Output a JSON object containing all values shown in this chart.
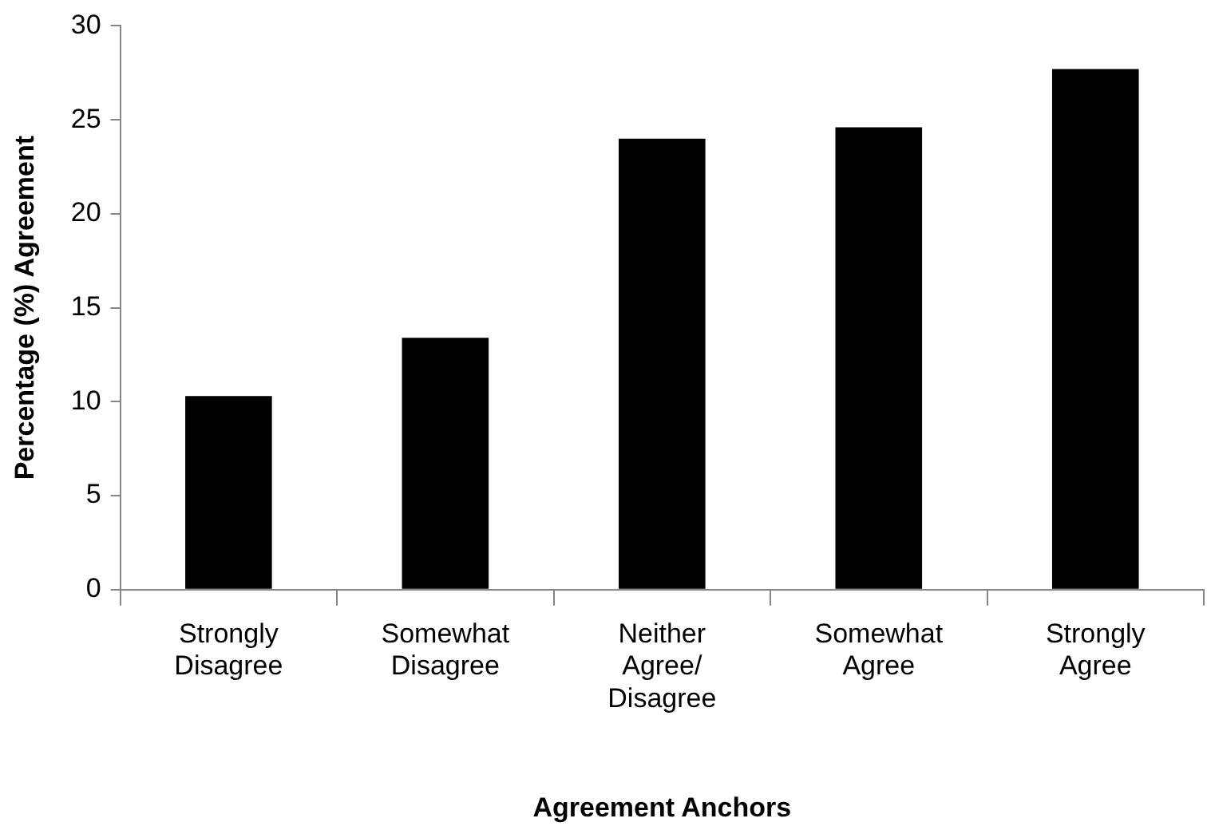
{
  "chart_data": {
    "type": "bar",
    "xlabel": "Agreement Anchors",
    "ylabel": "Percentage (%) Agreement",
    "categories": [
      "Strongly Disagree",
      "Somewhat Disagree",
      "Neither Agree/ Disagree",
      "Somewhat Agree",
      "Strongly Agree"
    ],
    "values": [
      10.3,
      13.4,
      24.0,
      24.6,
      27.7
    ],
    "color": "#000000",
    "ylim": [
      0,
      30
    ],
    "yticks": [
      0,
      5,
      10,
      15,
      20,
      25,
      30
    ],
    "grid": false,
    "legend": false
  }
}
